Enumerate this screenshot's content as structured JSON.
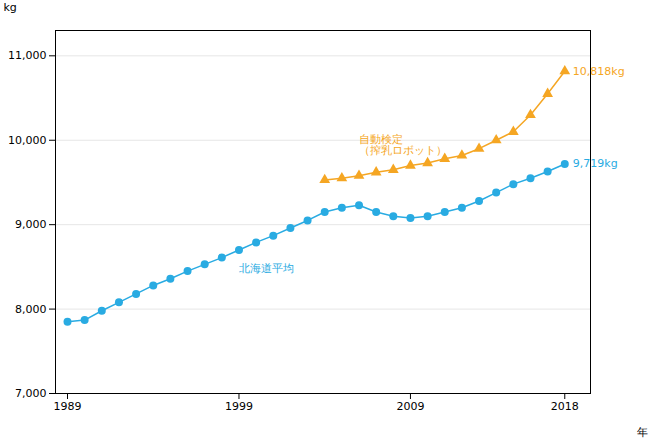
{
  "chart_data": {
    "type": "line",
    "x": [
      1989,
      1990,
      1991,
      1992,
      1993,
      1994,
      1995,
      1996,
      1997,
      1998,
      1999,
      2000,
      2001,
      2002,
      2003,
      2004,
      2005,
      2006,
      2007,
      2008,
      2009,
      2010,
      2011,
      2012,
      2013,
      2014,
      2015,
      2016,
      2017,
      2018
    ],
    "series": [
      {
        "name": "北海道平均",
        "color": "#29ABE2",
        "marker": "circle",
        "values": [
          7850,
          7870,
          7980,
          8080,
          8180,
          8280,
          8360,
          8450,
          8530,
          8610,
          8700,
          8790,
          8870,
          8960,
          9050,
          9150,
          9200,
          9230,
          9150,
          9100,
          9080,
          9100,
          9150,
          9200,
          9280,
          9380,
          9480,
          9550,
          9630,
          9719
        ],
        "value_labels": [
          null,
          null,
          null,
          null,
          null,
          null,
          null,
          null,
          null,
          null,
          null,
          null,
          null,
          null,
          null,
          null,
          null,
          null,
          null,
          null,
          null,
          null,
          null,
          null,
          null,
          null,
          null,
          null,
          null,
          "9,719kg"
        ]
      },
      {
        "name": "自動検定\n（搾乳ロボット）",
        "color": "#F5A623",
        "marker": "triangle",
        "values": [
          null,
          null,
          null,
          null,
          null,
          null,
          null,
          null,
          null,
          null,
          null,
          null,
          null,
          null,
          null,
          9530,
          9550,
          9580,
          9620,
          9650,
          9700,
          9730,
          9780,
          9820,
          9900,
          10000,
          10100,
          10300,
          10550,
          10818
        ],
        "value_labels": [
          null,
          null,
          null,
          null,
          null,
          null,
          null,
          null,
          null,
          null,
          null,
          null,
          null,
          null,
          null,
          null,
          null,
          null,
          null,
          null,
          null,
          null,
          null,
          null,
          null,
          null,
          null,
          null,
          null,
          "10,818kg"
        ]
      }
    ],
    "xlabel": "年",
    "ylabel": "kg",
    "xlim": [
      1988.3,
      2019.5
    ],
    "xticks": [
      1989,
      1999,
      2009,
      2018
    ],
    "ylim": [
      7000,
      11300
    ],
    "yticks": [
      {
        "value": 7000,
        "label": "7,000"
      },
      {
        "value": 8000,
        "label": "8,000"
      },
      {
        "value": 9000,
        "label": "9,000"
      },
      {
        "value": 10000,
        "label": "10,000"
      },
      {
        "value": 11000,
        "label": "11,000"
      }
    ],
    "grid": true
  }
}
